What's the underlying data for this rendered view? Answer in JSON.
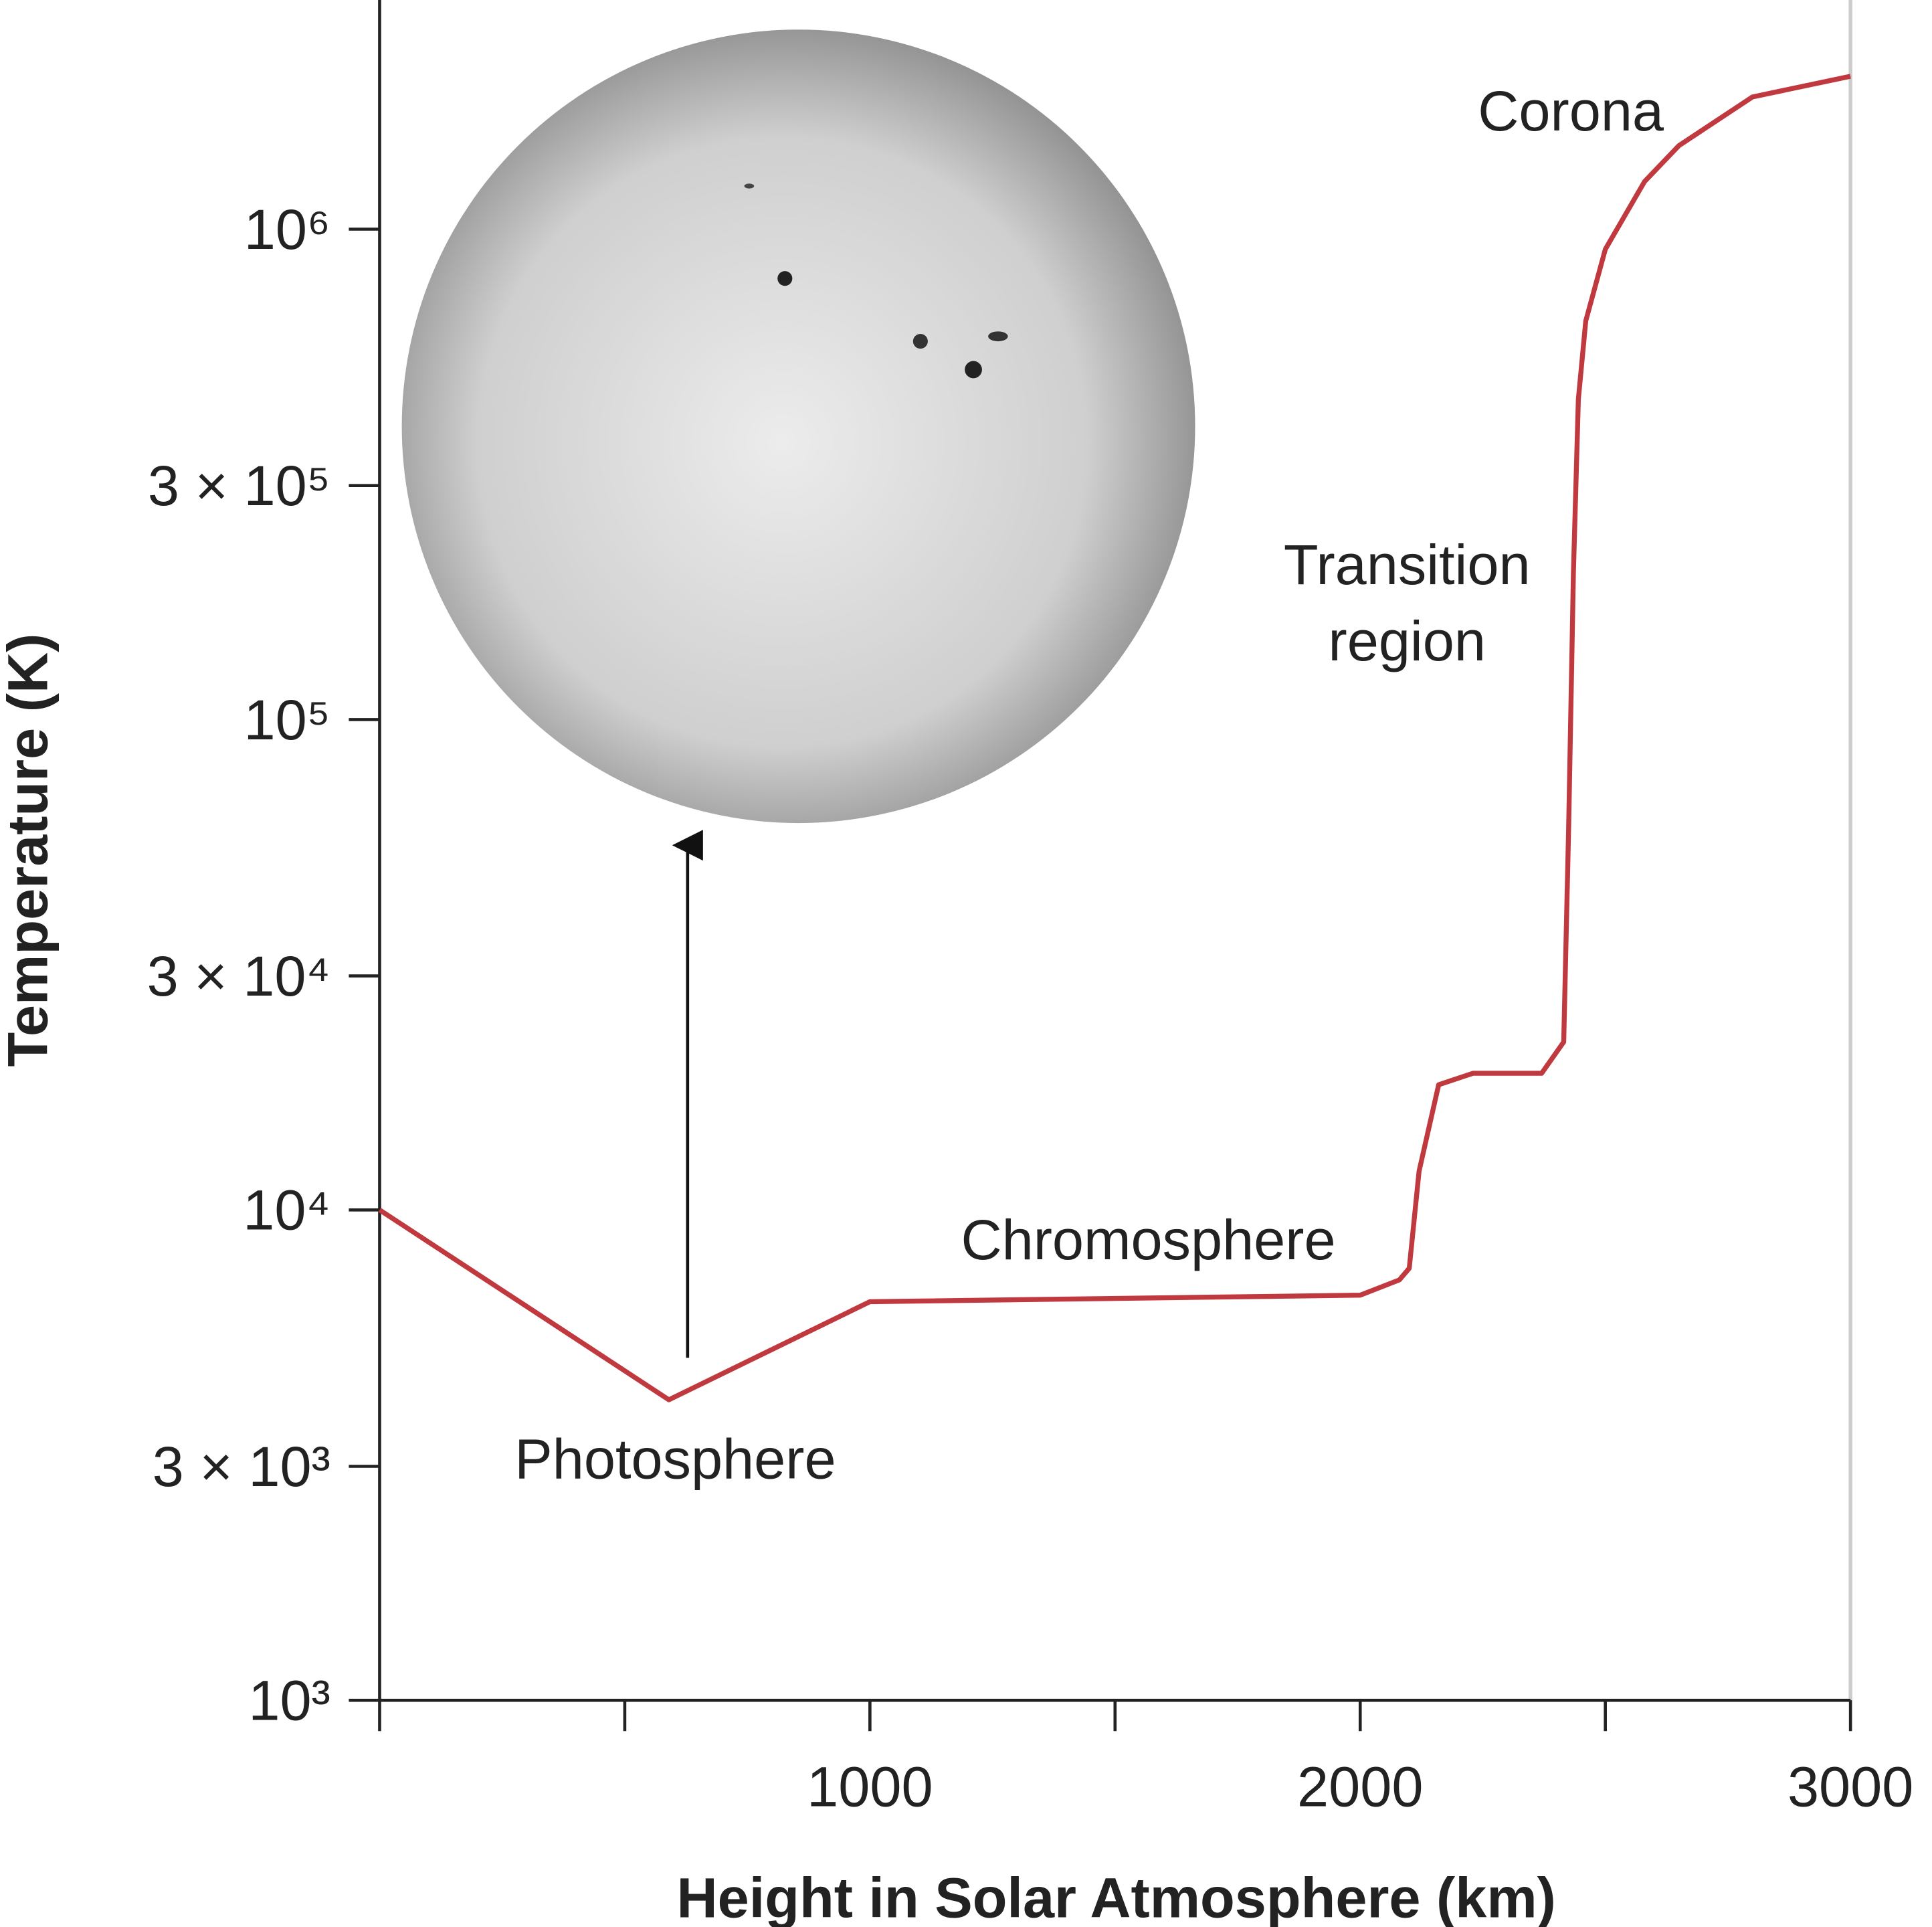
{
  "chart_data": {
    "type": "line",
    "log_y": true,
    "color": "#c0393f",
    "xlabel": "Height in Solar Atmosphere (km)",
    "ylabel": "Temperature (K)",
    "annotations": {
      "corona": "Corona",
      "transition": [
        "Transition",
        "region"
      ],
      "chromosphere": "Chromosphere",
      "photosphere": "Photosphere"
    },
    "xlim": [
      0,
      3000
    ],
    "ylim": [
      1000,
      3000000
    ],
    "xticks": [
      {
        "value": 0,
        "label": null
      },
      {
        "value": 500,
        "label": null
      },
      1000,
      {
        "value": 1500,
        "label": null
      },
      2000,
      {
        "value": 2500,
        "label": null
      },
      3000
    ],
    "yticks": [
      {
        "value": 1000,
        "label": "10³"
      },
      {
        "value": 3000,
        "label": "3 × 10³"
      },
      {
        "value": 10000,
        "label": "10⁴"
      },
      {
        "value": 30000,
        "label": "3 × 10⁴"
      },
      {
        "value": 100000,
        "label": "10⁵"
      },
      {
        "value": 300000,
        "label": "3 × 10⁵"
      },
      {
        "value": 1000000,
        "label": "10⁶"
      }
    ],
    "x": [
      0,
      590,
      1000,
      2000,
      2080,
      2100,
      2120,
      2160,
      2230,
      2370,
      2415,
      2425,
      2435,
      2445,
      2460,
      2500,
      2580,
      2650,
      2800,
      3000
    ],
    "values": [
      10000,
      4100,
      6500,
      6700,
      7200,
      7600,
      12000,
      18000,
      19000,
      19000,
      22000,
      60000,
      200000,
      450000,
      650000,
      910000,
      1250000,
      1480000,
      1860000,
      2050000
    ]
  }
}
